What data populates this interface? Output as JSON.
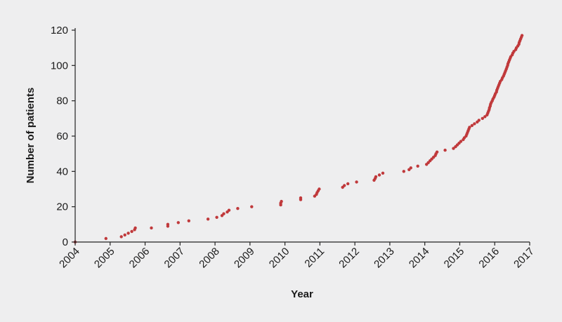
{
  "chart_data": {
    "type": "scatter",
    "title": "",
    "xlabel": "Year",
    "ylabel": "Number of patients",
    "xlim": [
      2004,
      2017
    ],
    "ylim": [
      0,
      120
    ],
    "x_ticks": [
      "2004",
      "2005",
      "2006",
      "2007",
      "2008",
      "2009",
      "2010",
      "2011",
      "2012",
      "2013",
      "2014",
      "2015",
      "2016",
      "2017"
    ],
    "y_ticks": [
      "0",
      "20",
      "40",
      "60",
      "80",
      "100",
      "120"
    ],
    "grid": false,
    "marker_color": "#c0393b",
    "series": [
      {
        "points": [
          [
            2004.0,
            0
          ],
          [
            2004.88,
            2
          ],
          [
            2005.32,
            3
          ],
          [
            2005.42,
            4
          ],
          [
            2005.52,
            5
          ],
          [
            2005.62,
            6
          ],
          [
            2005.7,
            7
          ],
          [
            2005.72,
            8
          ],
          [
            2006.18,
            8
          ],
          [
            2006.65,
            9
          ],
          [
            2006.65,
            10
          ],
          [
            2006.95,
            11
          ],
          [
            2007.25,
            12
          ],
          [
            2007.8,
            13
          ],
          [
            2008.05,
            14
          ],
          [
            2008.2,
            15
          ],
          [
            2008.25,
            16
          ],
          [
            2008.35,
            17
          ],
          [
            2008.4,
            18
          ],
          [
            2008.65,
            19
          ],
          [
            2009.05,
            20
          ],
          [
            2009.88,
            21
          ],
          [
            2009.88,
            22
          ],
          [
            2009.9,
            23
          ],
          [
            2010.45,
            24
          ],
          [
            2010.45,
            25
          ],
          [
            2010.85,
            26
          ],
          [
            2010.9,
            27
          ],
          [
            2010.92,
            28
          ],
          [
            2010.95,
            29
          ],
          [
            2010.98,
            30
          ],
          [
            2011.65,
            31
          ],
          [
            2011.7,
            32
          ],
          [
            2011.8,
            33
          ],
          [
            2012.05,
            34
          ],
          [
            2012.55,
            35
          ],
          [
            2012.58,
            36
          ],
          [
            2012.6,
            37
          ],
          [
            2012.7,
            38
          ],
          [
            2012.8,
            39
          ],
          [
            2013.4,
            40
          ],
          [
            2013.55,
            41
          ],
          [
            2013.6,
            42
          ],
          [
            2013.8,
            43
          ],
          [
            2014.05,
            44
          ],
          [
            2014.1,
            45
          ],
          [
            2014.15,
            46
          ],
          [
            2014.2,
            47
          ],
          [
            2014.25,
            48
          ],
          [
            2014.3,
            49
          ],
          [
            2014.32,
            50
          ],
          [
            2014.35,
            51
          ],
          [
            2014.58,
            52
          ],
          [
            2014.82,
            53
          ],
          [
            2014.88,
            54
          ],
          [
            2014.93,
            55
          ],
          [
            2014.98,
            56
          ],
          [
            2015.03,
            57
          ],
          [
            2015.1,
            58
          ],
          [
            2015.13,
            59
          ],
          [
            2015.18,
            60
          ],
          [
            2015.2,
            61
          ],
          [
            2015.22,
            62
          ],
          [
            2015.24,
            63
          ],
          [
            2015.26,
            64
          ],
          [
            2015.28,
            65
          ],
          [
            2015.35,
            66
          ],
          [
            2015.42,
            67
          ],
          [
            2015.5,
            68
          ],
          [
            2015.55,
            69
          ],
          [
            2015.65,
            70
          ],
          [
            2015.72,
            71
          ],
          [
            2015.78,
            72
          ],
          [
            2015.8,
            73
          ],
          [
            2015.82,
            74
          ],
          [
            2015.84,
            75
          ],
          [
            2015.85,
            76
          ],
          [
            2015.87,
            77
          ],
          [
            2015.88,
            78
          ],
          [
            2015.9,
            79
          ],
          [
            2015.93,
            80
          ],
          [
            2015.95,
            81
          ],
          [
            2015.98,
            82
          ],
          [
            2016.0,
            83
          ],
          [
            2016.02,
            84
          ],
          [
            2016.05,
            85
          ],
          [
            2016.06,
            86
          ],
          [
            2016.08,
            87
          ],
          [
            2016.1,
            88
          ],
          [
            2016.12,
            89
          ],
          [
            2016.14,
            90
          ],
          [
            2016.16,
            91
          ],
          [
            2016.2,
            92
          ],
          [
            2016.22,
            93
          ],
          [
            2016.25,
            94
          ],
          [
            2016.27,
            95
          ],
          [
            2016.29,
            96
          ],
          [
            2016.31,
            97
          ],
          [
            2016.33,
            98
          ],
          [
            2016.35,
            99
          ],
          [
            2016.37,
            100
          ],
          [
            2016.38,
            101
          ],
          [
            2016.4,
            102
          ],
          [
            2016.42,
            103
          ],
          [
            2016.44,
            104
          ],
          [
            2016.46,
            105
          ],
          [
            2016.5,
            106
          ],
          [
            2016.52,
            107
          ],
          [
            2016.55,
            108
          ],
          [
            2016.6,
            109
          ],
          [
            2016.62,
            110
          ],
          [
            2016.66,
            111
          ],
          [
            2016.69,
            112
          ],
          [
            2016.7,
            113
          ],
          [
            2016.72,
            114
          ],
          [
            2016.74,
            115
          ],
          [
            2016.76,
            116
          ],
          [
            2016.78,
            117
          ]
        ]
      }
    ]
  }
}
